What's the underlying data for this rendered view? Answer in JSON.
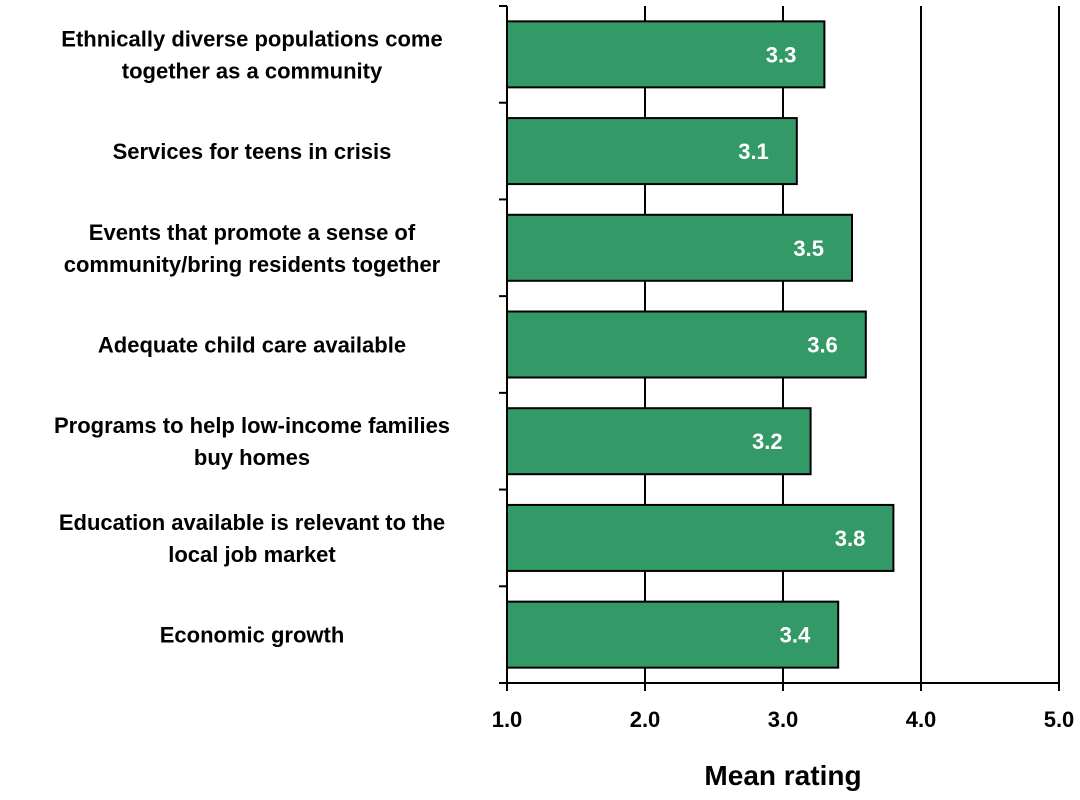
{
  "chart_data": {
    "type": "bar",
    "orientation": "horizontal",
    "categories": [
      [
        "Ethnically diverse populations come",
        "together as a community"
      ],
      [
        "Services for teens in crisis"
      ],
      [
        "Events that promote a sense of",
        "community/bring residents together"
      ],
      [
        "Adequate child care available"
      ],
      [
        "Programs to help low-income families",
        "buy homes"
      ],
      [
        "Education available is relevant to the",
        "local job market"
      ],
      [
        "Economic growth"
      ]
    ],
    "values": [
      3.3,
      3.1,
      3.5,
      3.6,
      3.2,
      3.8,
      3.4
    ],
    "value_labels": [
      "3.3",
      "3.1",
      "3.5",
      "3.6",
      "3.2",
      "3.8",
      "3.4"
    ],
    "xlabel": "Mean rating",
    "xlim": [
      1.0,
      5.0
    ],
    "xticks": [
      1.0,
      2.0,
      3.0,
      4.0,
      5.0
    ],
    "xtick_labels": [
      "1.0",
      "2.0",
      "3.0",
      "4.0",
      "5.0"
    ],
    "grid": "vertical",
    "legend": "none"
  },
  "colors": {
    "bar_fill": "#339966",
    "bar_stroke": "#000000",
    "grid": "#000000",
    "value_text": "#ffffff"
  }
}
